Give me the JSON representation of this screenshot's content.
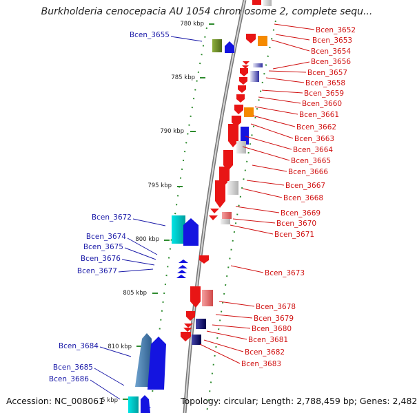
{
  "title": "Burkholderia cenocepacia AU 1054 chromosome 2, complete sequ...",
  "accession": "Accession: NC_008061",
  "topology": "Topology: circular; Length: 2,788,459 bp; Genes: 2,482",
  "scale_labels": [
    "780 kbp",
    "785 kbp",
    "790 kbp",
    "795 kbp",
    "800 kbp",
    "805 kbp",
    "810 kbp",
    "5 kbp"
  ],
  "genes_left": [
    "Bcen_3655",
    "Bcen_3672",
    "Bcen_3674",
    "Bcen_3675",
    "Bcen_3676",
    "Bcen_3677",
    "Bcen_3684",
    "Bcen_3685",
    "Bcen_3686"
  ],
  "genes_right": [
    "Bcen_3652",
    "Bcen_3653",
    "Bcen_3654",
    "Bcen_3656",
    "Bcen_3657",
    "Bcen_3658",
    "Bcen_3659",
    "Bcen_3660",
    "Bcen_3661",
    "Bcen_3662",
    "Bcen_3663",
    "Bcen_3664",
    "Bcen_3665",
    "Bcen_3666",
    "Bcen_3667",
    "Bcen_3668",
    "Bcen_3669",
    "Bcen_3670",
    "Bcen_3671",
    "Bcen_3673",
    "Bcen_3678",
    "Bcen_3679",
    "Bcen_3680",
    "Bcen_3681",
    "Bcen_3682",
    "Bcen_3683"
  ],
  "colors": {
    "forward": "#e81515",
    "reverse": "#1414e0",
    "backbone": "#8a8a8a",
    "tick": "#2e8b2e",
    "left_label": "#1a1aa8",
    "right_label": "#d01010"
  }
}
